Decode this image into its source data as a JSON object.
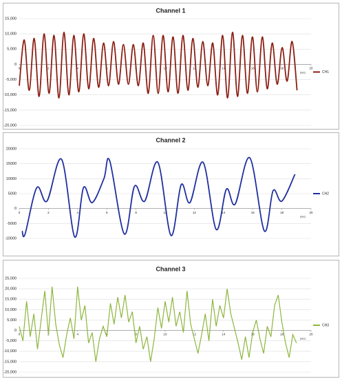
{
  "chart_data": [
    {
      "type": "line",
      "title": "Channel 1",
      "x_label": "(sec)",
      "grid": true,
      "legend": "right",
      "xlim": [
        0,
        20
      ],
      "xticks": [
        0,
        2,
        4,
        6,
        8,
        10,
        12,
        14,
        16,
        18,
        20
      ],
      "ylim": [
        -20000,
        15000
      ],
      "yticks": [
        {
          "value": -20000,
          "label": "-20,000"
        },
        {
          "value": -15000,
          "label": "-15,000"
        },
        {
          "value": -10000,
          "label": "-10,000"
        },
        {
          "value": -5000,
          "label": "-5,000"
        },
        0,
        {
          "value": 5000,
          "label": "5,000"
        },
        {
          "value": 10000,
          "label": "10,000"
        },
        {
          "value": 15000,
          "label": "15,000"
        }
      ],
      "x": [
        0,
        0.34,
        0.68,
        1.02,
        1.36,
        1.7,
        2.04,
        2.38,
        2.72,
        3.06,
        3.4,
        3.74,
        4.08,
        4.42,
        4.76,
        5.1,
        5.44,
        5.78,
        6.12,
        6.46,
        6.8,
        7.14,
        7.48,
        7.82,
        8.16,
        8.5,
        8.84,
        9.18,
        9.52,
        9.86,
        10.2,
        10.54,
        10.88,
        11.22,
        11.56,
        11.9,
        12.24,
        12.58,
        12.92,
        13.26,
        13.6,
        13.94,
        14.28,
        14.62,
        14.96,
        15.3,
        15.64,
        15.98,
        16.32,
        16.66,
        17,
        17.34,
        17.68,
        18.02,
        18.36,
        18.7,
        19.04
      ],
      "series": [
        {
          "name": "CH1",
          "color": "#8b1e12",
          "values": [
            -7000,
            8000,
            -8500,
            8500,
            -10500,
            10000,
            -9500,
            9500,
            -11000,
            10500,
            -10000,
            9500,
            -9000,
            10000,
            -8000,
            8500,
            -7500,
            7000,
            -7000,
            7500,
            -6500,
            6500,
            -6500,
            6500,
            -7000,
            7000,
            -9500,
            9500,
            -9500,
            9500,
            -9000,
            9000,
            -9500,
            9500,
            -8500,
            8500,
            -7500,
            7500,
            -7000,
            7000,
            -10000,
            9500,
            -11000,
            10500,
            -10500,
            9500,
            -9500,
            9000,
            -9000,
            9000,
            -8000,
            7000,
            -6500,
            5500,
            -5500,
            7500,
            -8500
          ]
        }
      ]
    },
    {
      "type": "line",
      "title": "Channel 2",
      "x_label": "(sec)",
      "grid": true,
      "legend": "right",
      "xlim": [
        0,
        20
      ],
      "xticks": [
        0,
        2,
        4,
        6,
        8,
        10,
        12,
        14,
        16,
        18,
        20
      ],
      "ylim": [
        -10000,
        20000
      ],
      "yticks": [
        -10000,
        -5000,
        0,
        5000,
        10000,
        15000,
        20000
      ],
      "x": [
        0.2,
        0.4,
        1.2,
        1.9,
        2.9,
        3.8,
        4.4,
        5.0,
        5.8,
        6.2,
        7.2,
        7.9,
        8.6,
        9.5,
        10.4,
        11.1,
        11.7,
        12.6,
        13.5,
        14.2,
        14.8,
        15.8,
        16.8,
        17.4,
        18.0,
        18.9
      ],
      "series": [
        {
          "name": "CH2",
          "color": "#1f2f9e",
          "values": [
            -7500,
            -8500,
            7000,
            2500,
            16500,
            -9500,
            7000,
            2000,
            10000,
            16000,
            -8500,
            7500,
            2500,
            15500,
            -9000,
            8000,
            2000,
            15500,
            -7000,
            6500,
            1500,
            17000,
            -7500,
            6000,
            2500,
            11500
          ]
        }
      ]
    },
    {
      "type": "line",
      "title": "Channel 3",
      "x_label": "(sec)",
      "grid": true,
      "legend": "right",
      "xlim": [
        0,
        20
      ],
      "xticks": [
        0,
        2,
        4,
        6,
        8,
        10,
        12,
        14,
        16,
        18,
        20
      ],
      "ylim": [
        -20000,
        25000
      ],
      "yticks": [
        {
          "value": -20000,
          "label": "-20,000"
        },
        {
          "value": -15000,
          "label": "-15,000"
        },
        {
          "value": -10000,
          "label": "-10,000"
        },
        {
          "value": -5000,
          "label": "-5,000"
        },
        0,
        {
          "value": 5000,
          "label": "5,000"
        },
        {
          "value": 10000,
          "label": "10,000"
        },
        {
          "value": 15000,
          "label": "15,000"
        },
        {
          "value": 20000,
          "label": "20,000"
        },
        {
          "value": 25000,
          "label": "25,000"
        }
      ],
      "x": [
        0,
        0.25,
        0.5,
        0.75,
        1,
        1.25,
        1.5,
        1.75,
        2,
        2.25,
        2.5,
        2.75,
        3,
        3.25,
        3.5,
        3.75,
        4,
        4.25,
        4.5,
        4.75,
        5,
        5.25,
        5.5,
        5.75,
        6,
        6.25,
        6.5,
        6.75,
        7,
        7.25,
        7.5,
        7.75,
        8,
        8.25,
        8.5,
        8.75,
        9,
        9.25,
        9.5,
        9.75,
        10,
        10.25,
        10.5,
        10.75,
        11,
        11.25,
        11.5,
        11.75,
        12,
        12.25,
        12.5,
        12.75,
        13,
        13.25,
        13.5,
        13.75,
        14,
        14.25,
        14.5,
        14.75,
        15,
        15.25,
        15.5,
        15.75,
        16,
        16.25,
        16.5,
        16.75,
        17,
        17.25,
        17.5,
        17.75,
        18,
        18.25,
        18.5,
        18.75,
        19
      ],
      "series": [
        {
          "name": "CH3",
          "color": "#8db53c",
          "values": [
            2000,
            -5000,
            14000,
            -3000,
            8000,
            -9000,
            5000,
            19000,
            -2000,
            21000,
            3000,
            -7000,
            -13000,
            -2000,
            6000,
            -4000,
            21000,
            5000,
            12000,
            -6000,
            -1000,
            -15000,
            -4000,
            2000,
            -3000,
            13000,
            3000,
            16000,
            6000,
            17000,
            4000,
            9000,
            -6000,
            2000,
            -9000,
            -3000,
            -15000,
            -4000,
            11000,
            1000,
            14000,
            4000,
            16000,
            2000,
            9000,
            -1000,
            19000,
            3000,
            -4000,
            -11000,
            -2000,
            8000,
            -5000,
            15000,
            2000,
            12000,
            6000,
            20000,
            8000,
            1000,
            -6000,
            -14000,
            -3000,
            -13000,
            -1000,
            5000,
            -4000,
            -11000,
            2000,
            -3000,
            12000,
            17000,
            4000,
            -6000,
            -13000,
            -2000,
            -6000
          ]
        }
      ]
    }
  ]
}
